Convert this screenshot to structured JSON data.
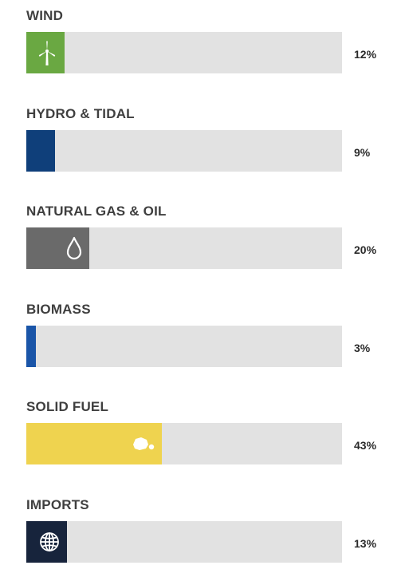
{
  "chart_data": {
    "type": "bar",
    "orientation": "horizontal",
    "xlim": [
      0,
      100
    ],
    "unit": "%",
    "categories": [
      "WIND",
      "HYDRO & TIDAL",
      "NATURAL GAS & OIL",
      "BIOMASS",
      "SOLID FUEL",
      "IMPORTS"
    ],
    "values": [
      12,
      9,
      20,
      3,
      43,
      13
    ],
    "value_labels": [
      "12%",
      "9%",
      "20%",
      "3%",
      "43%",
      "13%"
    ],
    "colors": [
      "#6aa842",
      "#0f3f7a",
      "#6a6a6a",
      "#1a55a8",
      "#efd34f",
      "#17243c"
    ],
    "icons": [
      "wind-turbine-icon",
      "",
      "droplet-icon",
      "",
      "coal-lump-icon",
      "globe-icon"
    ],
    "track_color": "#e2e2e2"
  }
}
